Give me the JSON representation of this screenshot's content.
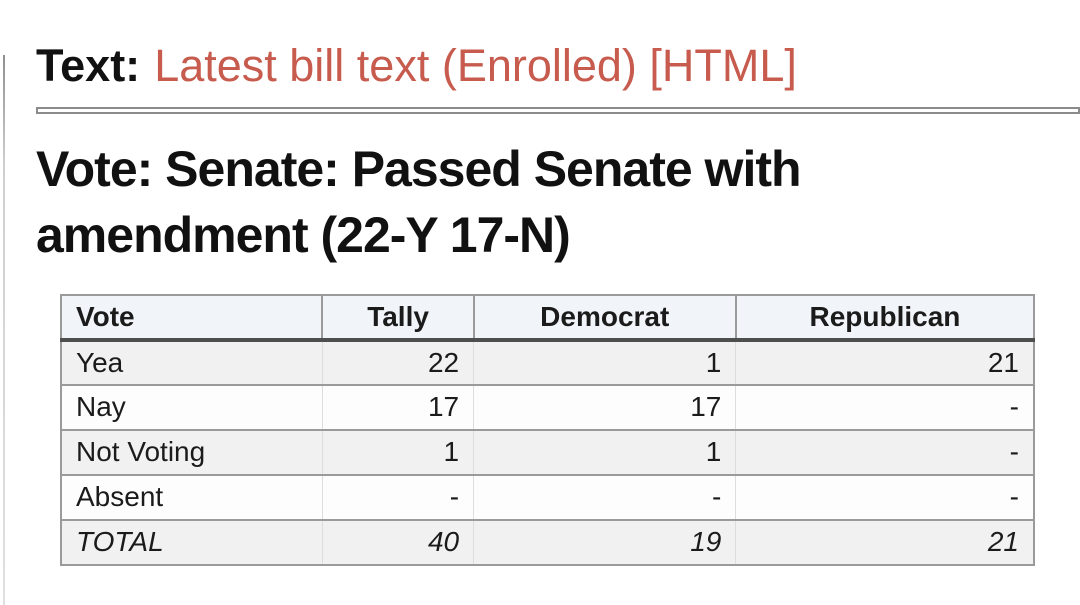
{
  "page": {
    "text_label": "Text:",
    "text_link": "Latest bill text (Enrolled) [HTML]",
    "vote_heading": "Vote: Senate: Passed Senate with amendment (22-Y 17-N)"
  },
  "colors": {
    "link_red": "#c75b4e",
    "table_header_bg": "#f1f5f9",
    "row_stripe_bg": "#f1f1f1",
    "table_border_gray": "#9a9a9a",
    "header_underline_dark": "#4e4e4e",
    "text_black": "#111111"
  },
  "vote_table": {
    "columns": [
      "Vote",
      "Tally",
      "Democrat",
      "Republican"
    ],
    "rows": [
      [
        "Yea",
        "22",
        "1",
        "21"
      ],
      [
        "Nay",
        "17",
        "17",
        "-"
      ],
      [
        "Not Voting",
        "1",
        "1",
        "-"
      ],
      [
        "Absent",
        "-",
        "-",
        "-"
      ],
      [
        "TOTAL",
        "40",
        "19",
        "21"
      ]
    ]
  }
}
